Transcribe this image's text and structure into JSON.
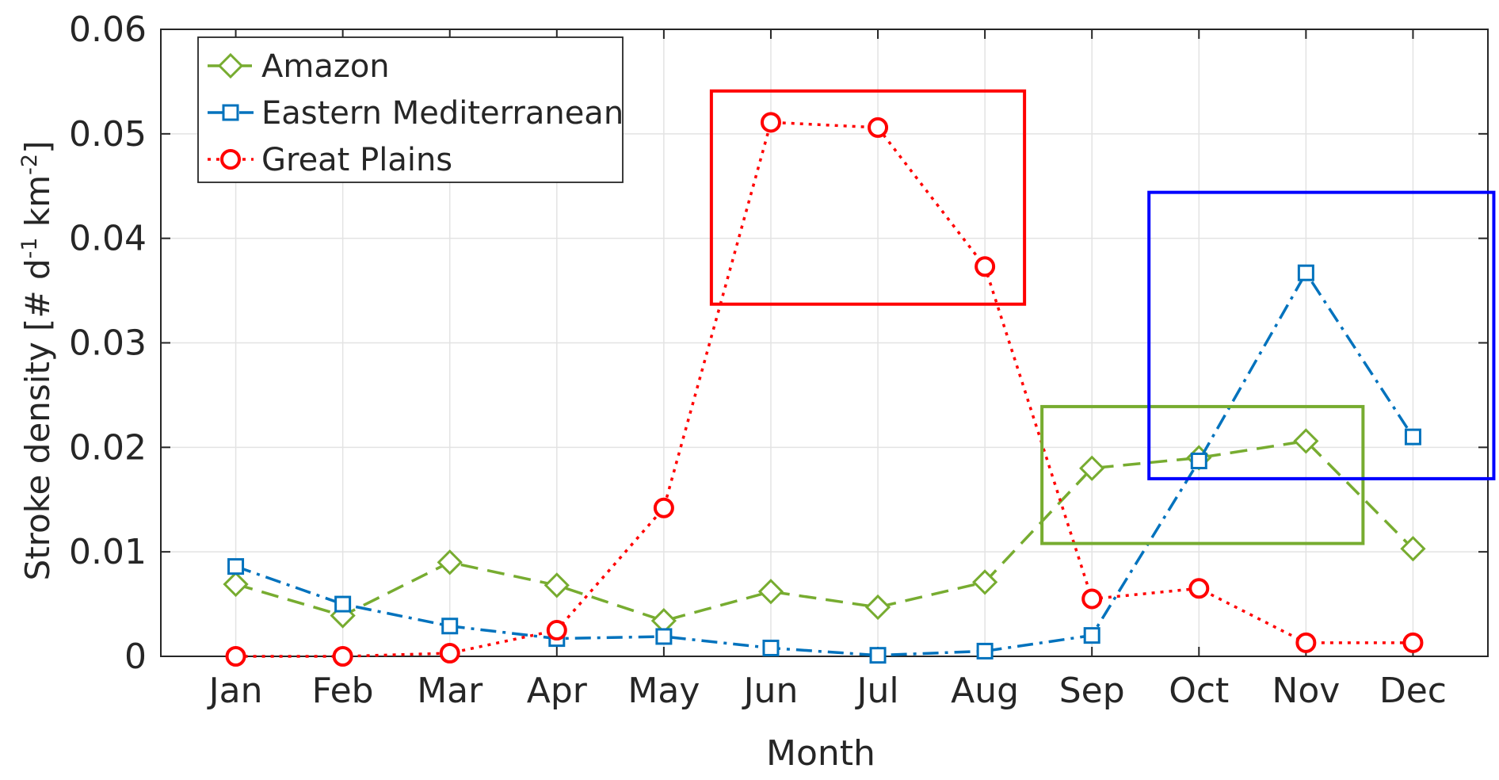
{
  "chart_data": {
    "type": "line",
    "title": "",
    "xlabel": "Month",
    "ylabel_parts": [
      "Stroke  density  [#  d",
      "-1",
      "  km",
      "-2",
      "]"
    ],
    "categories": [
      "Jan",
      "Feb",
      "Mar",
      "Apr",
      "May",
      "Jun",
      "Jul",
      "Aug",
      "Sep",
      "Oct",
      "Nov",
      "Dec"
    ],
    "ylim": [
      0,
      0.06
    ],
    "yticks": [
      "0",
      "0.01",
      "0.02",
      "0.03",
      "0.04",
      "0.05",
      "0.06"
    ],
    "grid": true,
    "legend_position": "top-left",
    "series": [
      {
        "name": "Amazon",
        "color": "#77AC30",
        "line_style": "dashed",
        "marker": "diamond",
        "values": [
          0.0069,
          0.0039,
          0.009,
          0.0068,
          0.0034,
          0.0062,
          0.0047,
          0.0071,
          0.018,
          0.019,
          0.0206,
          0.0103
        ]
      },
      {
        "name": "Eastern Mediterranean",
        "color": "#0072BD",
        "line_style": "dash-dot",
        "marker": "square",
        "values": [
          0.0086,
          0.005,
          0.0029,
          0.0017,
          0.0019,
          0.0008,
          0.0001,
          0.0005,
          0.002,
          0.0187,
          0.0367,
          0.021
        ]
      },
      {
        "name": "Great Plains",
        "color": "#FF0000",
        "line_style": "dotted",
        "marker": "circle",
        "values": [
          0.0,
          0.0,
          0.0003,
          0.0025,
          0.0142,
          0.0511,
          0.0506,
          0.0373,
          0.0055,
          0.0065,
          0.0013,
          0.0013
        ]
      }
    ],
    "highlight_boxes": [
      {
        "color": "#FF0000",
        "x_range": [
          "May",
          "Aug"
        ],
        "y_range": [
          0.0337,
          0.0541
        ]
      },
      {
        "color": "#77AC30",
        "x_range": [
          "Aug",
          "Nov"
        ],
        "y_range": [
          0.0108,
          0.0239
        ]
      },
      {
        "color": "#0000FF",
        "x_range": [
          "Sep",
          "Dec"
        ],
        "y_range": [
          0.017,
          0.0444
        ]
      }
    ]
  }
}
